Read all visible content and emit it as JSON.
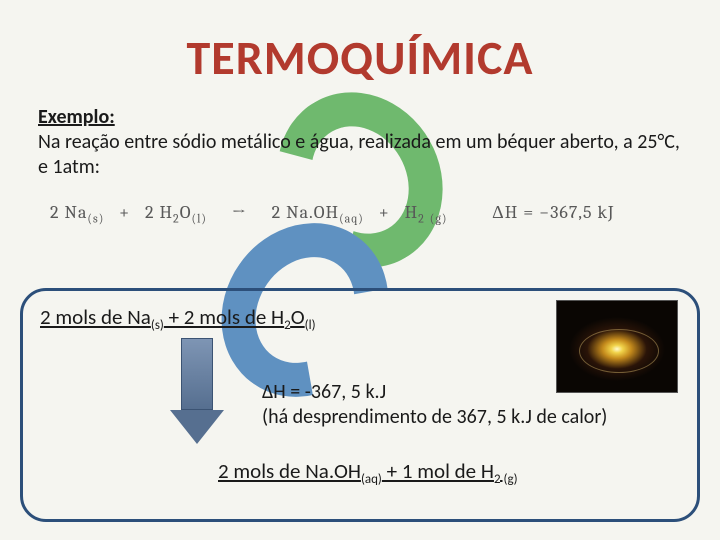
{
  "title": "TERMOQUÍMICA",
  "example": {
    "label": "Exemplo:",
    "text": "Na reação entre sódio metálico e água, realizada em um béquer aberto, a 25°C, e 1atm:"
  },
  "equation": {
    "reactants_1_coef": "2",
    "reactants_1_species": "Na",
    "reactants_1_phase": "(s)",
    "reactants_2_coef": "2",
    "reactants_2_species": "H",
    "reactants_2_sub": "2",
    "reactants_2_species2": "O",
    "reactants_2_phase": "(l)",
    "arrow": "→",
    "products_1_coef": "2",
    "products_1_species": "Na.OH",
    "products_1_phase": "(aq)",
    "products_2_species": "H",
    "products_2_sub": "2",
    "products_2_phase": "(g)",
    "dh_label": "ΔH = −367,5 kJ"
  },
  "box": {
    "reactants_line_a": "2 mols de Na",
    "reactants_phase_a": "(s)",
    "reactants_plus": " + 2 mols de H",
    "reactants_sub": "2",
    "reactants_line_b": "O",
    "reactants_phase_b": "(l)",
    "dh_line1": "ΔH = -367, 5 k.J",
    "dh_line2": "(há desprendimento de 367, 5 k.J de calor)",
    "products_a": "2 mols de Na.OH",
    "products_phase_a": "(aq)",
    "products_plus": " + 1 mol de H",
    "products_sub": "2",
    "products_phase_b": " (g)"
  },
  "colors": {
    "title": "#b23a2e",
    "box_border": "#2c4f7a",
    "arrow_fill": "#566f90",
    "bg_green": "#6fb96e",
    "bg_blue": "#5f91c1",
    "page_bg": "#f5f5f0"
  }
}
